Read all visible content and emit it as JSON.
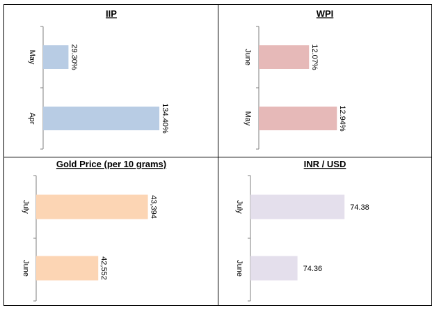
{
  "chart_data": [
    {
      "type": "bar",
      "title": "IIP",
      "categories": [
        "May",
        "Apr"
      ],
      "values": [
        29.3,
        134.4
      ],
      "labels": [
        "29.30%",
        "134.40%"
      ],
      "label_rotated": true,
      "color": "#b8cce4",
      "xlim": [
        0,
        140
      ]
    },
    {
      "type": "bar",
      "title": "WPI",
      "categories": [
        "June",
        "May"
      ],
      "values": [
        12.07,
        12.94
      ],
      "labels": [
        "12.07%",
        "12.94%"
      ],
      "label_rotated": true,
      "color": "#e6b9b8",
      "xlim": [
        10.5,
        13.5
      ]
    },
    {
      "type": "bar",
      "title": "Gold Price (per 10 grams)",
      "categories": [
        "July",
        "June"
      ],
      "values": [
        43394,
        42552
      ],
      "labels": [
        "43,394",
        "42,552"
      ],
      "label_rotated": true,
      "color": "#fcd5b4",
      "xlim": [
        41500,
        43800
      ]
    },
    {
      "type": "bar",
      "title": "INR / USD",
      "categories": [
        "July",
        "June"
      ],
      "values": [
        74.38,
        74.36
      ],
      "labels": [
        "74.38",
        "74.36"
      ],
      "label_rotated": false,
      "color": "#e4dfec",
      "xlim": [
        74.34,
        74.39
      ]
    }
  ]
}
